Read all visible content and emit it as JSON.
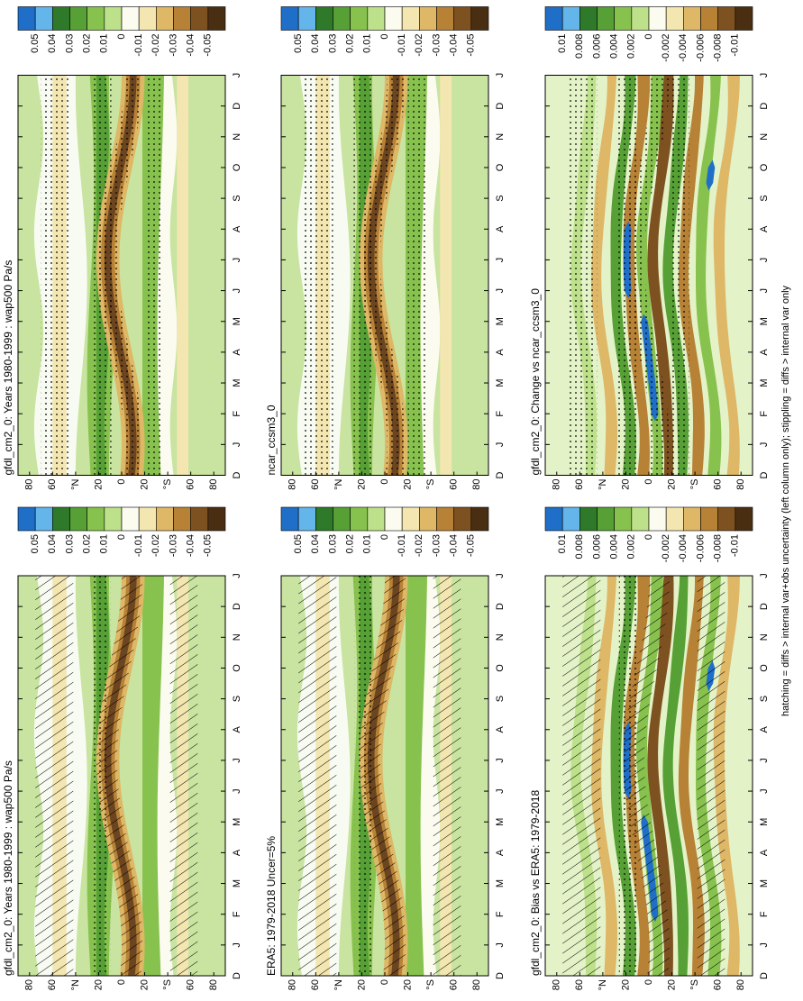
{
  "panels": [
    {
      "title": "gfdl_cm2_0: Years 1980-1999 : wap500 Pa/s",
      "colorbar_labels": [
        "0.05",
        "0.04",
        "0.03",
        "0.02",
        "0.01",
        "0",
        "-0.01",
        "-0.02",
        "-0.03",
        "-0.04",
        "-0.05"
      ]
    },
    {
      "title": "gfdl_cm2_0: Years 1980-1999 : wap500 Pa/s",
      "colorbar_labels": [
        "0.05",
        "0.04",
        "0.03",
        "0.02",
        "0.01",
        "0",
        "-0.01",
        "-0.02",
        "-0.03",
        "-0.04",
        "-0.05"
      ]
    },
    {
      "title": "ERA5: 1979-2018 Uncer=5%",
      "colorbar_labels": [
        "0.05",
        "0.04",
        "0.03",
        "0.02",
        "0.01",
        "0",
        "-0.01",
        "-0.02",
        "-0.03",
        "-0.04",
        "-0.05"
      ]
    },
    {
      "title": "ncar_ccsm3_0",
      "colorbar_labels": [
        "0.05",
        "0.04",
        "0.03",
        "0.02",
        "0.01",
        "0",
        "-0.01",
        "-0.02",
        "-0.03",
        "-0.04",
        "-0.05"
      ]
    },
    {
      "title": "gfdl_cm2_0: Bias vs ERA5: 1979-2018",
      "colorbar_labels": [
        "0.01",
        "0.008",
        "0.006",
        "0.004",
        "0.002",
        "0",
        "-0.002",
        "-0.004",
        "-0.006",
        "-0.008",
        "-0.01"
      ]
    },
    {
      "title": "gfdl_cm2_0: Change vs ncar_ccsm3_0",
      "colorbar_labels": [
        "0.01",
        "0.008",
        "0.006",
        "0.004",
        "0.002",
        "0",
        "-0.002",
        "-0.004",
        "-0.006",
        "-0.008",
        "-0.01"
      ]
    }
  ],
  "month_labels": [
    "D",
    "J",
    "F",
    "M",
    "A",
    "M",
    "J",
    "J",
    "A",
    "S",
    "O",
    "N",
    "D",
    "J"
  ],
  "lat_labels": [
    "80",
    "60",
    "°N",
    "20",
    "0",
    "20",
    "°S",
    "60",
    "80"
  ],
  "footer": "hatching = diffs > internal var+obs uncertainty (left column only); stippling = diffs > internal var only"
}
